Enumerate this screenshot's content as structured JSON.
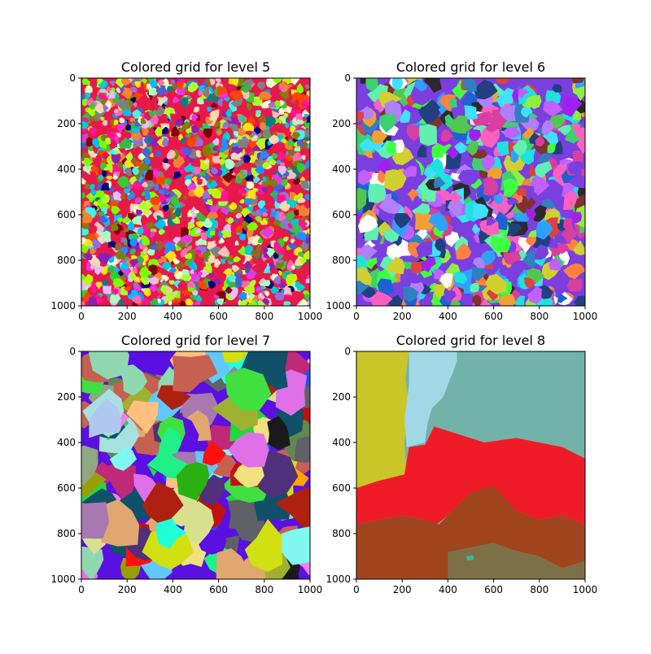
{
  "chart_data": [
    {
      "type": "heatmap",
      "title": "Colored grid for level 5",
      "xlabel": "",
      "ylabel": "",
      "xlim": [
        0,
        1000
      ],
      "ylim": [
        1000,
        0
      ],
      "x_ticks": [
        0,
        200,
        400,
        600,
        800,
        1000
      ],
      "y_ticks": [
        0,
        200,
        400,
        600,
        800,
        1000
      ],
      "grid": false,
      "level": 5,
      "region_scale": "very fine",
      "palette": [
        "#e6194b",
        "#3cb44b",
        "#ffe119",
        "#4363d8",
        "#f58231",
        "#911eb4",
        "#46f0f0",
        "#f032e6",
        "#bcf60c",
        "#fabebe",
        "#008080",
        "#e6beff",
        "#9a6324",
        "#fffac8",
        "#800000",
        "#aaffc3",
        "#808000",
        "#ffd8b1",
        "#000075",
        "#808080",
        "#1e90ff",
        "#ff69b4",
        "#7cfc00",
        "#00ced1",
        "#ff4500",
        "#9370db",
        "#32cd32",
        "#ff1493",
        "#00bfff",
        "#adff2f"
      ]
    },
    {
      "type": "heatmap",
      "title": "Colored grid for level 6",
      "xlabel": "",
      "ylabel": "",
      "xlim": [
        0,
        1000
      ],
      "ylim": [
        1000,
        0
      ],
      "x_ticks": [
        0,
        200,
        400,
        600,
        800,
        1000
      ],
      "y_ticks": [
        0,
        200,
        400,
        600,
        800,
        1000
      ],
      "grid": false,
      "level": 6,
      "region_scale": "fine",
      "palette": [
        "#7b3fe0",
        "#3cd070",
        "#1f5fd8",
        "#d83fa0",
        "#20e0e0",
        "#90ee40",
        "#f0a030",
        "#a020f0",
        "#30a0ff",
        "#ff60c0",
        "#50c850",
        "#d0d030",
        "#204080",
        "#803030",
        "#60f0b0",
        "#e04040",
        "#40e0ff",
        "#b080ff",
        "#2a2a2a",
        "#ffffff",
        "#40ff40",
        "#c060ff",
        "#ff8040",
        "#3080c0"
      ]
    },
    {
      "type": "heatmap",
      "title": "Colored grid for level 7",
      "xlabel": "",
      "ylabel": "",
      "xlim": [
        0,
        1000
      ],
      "ylim": [
        1000,
        0
      ],
      "x_ticks": [
        0,
        200,
        400,
        600,
        800,
        1000
      ],
      "y_ticks": [
        0,
        200,
        400,
        600,
        800,
        1000
      ],
      "grid": false,
      "level": 7,
      "region_scale": "medium",
      "palette": [
        "#5a10e0",
        "#1e50f0",
        "#c66050",
        "#ffa500",
        "#8fa880",
        "#a0b030",
        "#d0e010",
        "#1a1a1a",
        "#20ffd8",
        "#b02010",
        "#a878b0",
        "#ffc080",
        "#40e040",
        "#2ab010",
        "#c01010",
        "#b0c8f0",
        "#606068",
        "#98a000",
        "#105068",
        "#90d8b0",
        "#20f088",
        "#e0a870",
        "#80f8f0",
        "#d8e090",
        "#f0e080",
        "#e070e8",
        "#608850",
        "#c02878",
        "#50307a",
        "#20d840",
        "#ff1010",
        "#f080f0",
        "#60c8ff",
        "#a8e0e0"
      ]
    },
    {
      "type": "heatmap",
      "title": "Colored grid for level 8",
      "xlabel": "",
      "ylabel": "",
      "xlim": [
        0,
        1000
      ],
      "ylim": [
        1000,
        0
      ],
      "x_ticks": [
        0,
        200,
        400,
        600,
        800,
        1000
      ],
      "y_ticks": [
        0,
        200,
        400,
        600,
        800,
        1000
      ],
      "grid": false,
      "level": 8,
      "region_scale": "coarse",
      "regions": [
        {
          "color": "#cac528"
        },
        {
          "color": "#a1d8e6"
        },
        {
          "color": "#72b2a8"
        },
        {
          "color": "#ef1c27"
        },
        {
          "color": "#a0451e"
        },
        {
          "color": "#7d7046"
        },
        {
          "color": "#35b8a4"
        }
      ]
    }
  ]
}
